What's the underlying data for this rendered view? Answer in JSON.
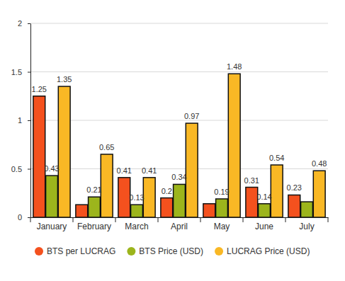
{
  "chart_data": {
    "type": "bar",
    "categories": [
      "January",
      "February",
      "March",
      "April",
      "May",
      "June",
      "July"
    ],
    "series": [
      {
        "name": "BTS per LUCRAG",
        "color": "#f4511e",
        "values": [
          1.25,
          0.13,
          0.41,
          0.2,
          0.14,
          0.31,
          0.23
        ],
        "value_labels": [
          "1.25",
          null,
          "0.41",
          "0.2",
          null,
          "0.31",
          "0.23"
        ]
      },
      {
        "name": "BTS Price (USD)",
        "color": "#9cb51c",
        "values": [
          0.43,
          0.21,
          0.13,
          0.34,
          0.19,
          0.14,
          0.16
        ],
        "value_labels": [
          "0.43",
          "0.21",
          "0.13",
          "0.34",
          "0.19",
          "0.14",
          null
        ]
      },
      {
        "name": "LUCRAG Price (USD)",
        "color": "#f9b825",
        "values": [
          1.35,
          0.65,
          0.41,
          0.97,
          1.48,
          0.54,
          0.48
        ],
        "value_labels": [
          "1.35",
          "0.65",
          "0.41",
          "0.97",
          "1.48",
          "0.54",
          "0.48"
        ]
      }
    ],
    "ylim": [
      0,
      2
    ],
    "yticks": [
      0,
      0.5,
      1,
      1.5,
      2
    ],
    "grid": true,
    "legend": "bottom",
    "data_labels": true
  }
}
